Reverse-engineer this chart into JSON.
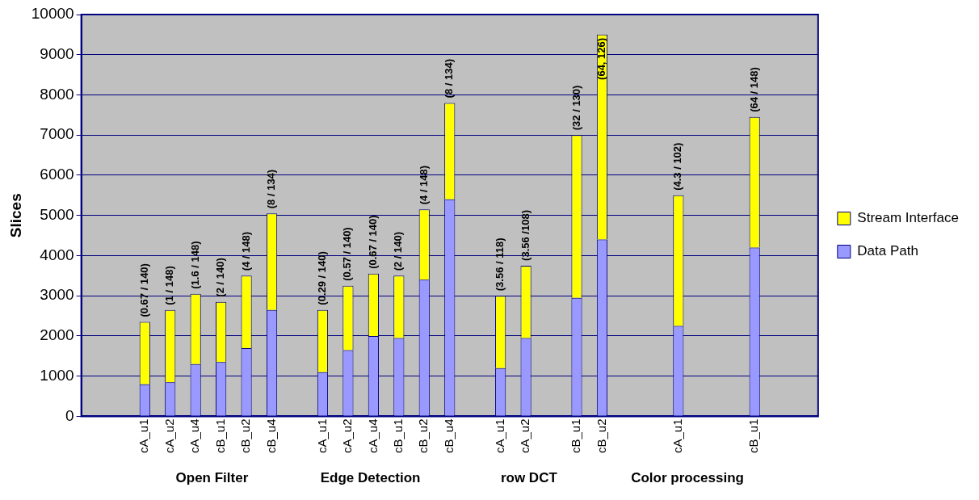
{
  "chart_data": {
    "type": "bar",
    "stacked": true,
    "ylabel": "Slices",
    "categories": [
      null,
      null,
      "cA_u1",
      "cA_u2",
      "cA_u4",
      "cB_u1",
      "cB_u2",
      "cB_u4",
      null,
      "cA_u1",
      "cA_u2",
      "cA_u4",
      "cB_u1",
      "cB_u2",
      "cB_u4",
      null,
      "cA_u1",
      "cA_u2",
      null,
      "cB_u1",
      "cB_u2",
      null,
      null,
      "cA_u1",
      null,
      null,
      "cB_u1",
      null,
      null
    ],
    "series": [
      {
        "name": "Data Path",
        "color": "#9999ff",
        "values": [
          null,
          null,
          800,
          850,
          1300,
          1350,
          1700,
          2650,
          null,
          1100,
          1650,
          2000,
          1950,
          3400,
          5400,
          null,
          1200,
          1950,
          null,
          2950,
          4400,
          null,
          null,
          2250,
          null,
          null,
          4200,
          null,
          null
        ]
      },
      {
        "name": "Stream Interface",
        "color": "#ffff00",
        "values": [
          null,
          null,
          1550,
          1800,
          1750,
          1500,
          1800,
          2400,
          null,
          1550,
          1600,
          1550,
          1550,
          1750,
          2400,
          null,
          1800,
          1800,
          null,
          4050,
          5100,
          null,
          null,
          3250,
          null,
          null,
          3250,
          null,
          null
        ],
        "value_labels": [
          null,
          null,
          "(0.67 / 140)",
          "(1 / 148)",
          "(1.6 / 148)",
          "(2 / 140)",
          "(4 / 148)",
          "(8 / 134)",
          null,
          "(0.29 / 140)",
          "(0.57 / 140)",
          "(0.67 / 140)",
          "(2 / 140)",
          "(4 / 148)",
          "(8 / 134)",
          null,
          "(3.56 / 118)",
          "(3.56 /108)",
          null,
          "(32 / 130)",
          "(64, 126)",
          null,
          null,
          "(4.3 / 102)",
          null,
          null,
          "(64 / 148)",
          null,
          null
        ]
      }
    ],
    "ylim": [
      0,
      10000
    ],
    "yticks": [
      0,
      1000,
      2000,
      3000,
      4000,
      5000,
      6000,
      7000,
      8000,
      9000,
      10000
    ],
    "grid": "y",
    "legend": "right",
    "annotations": [
      "Open Filter",
      "Edge Detection",
      "row DCT",
      "Color processing"
    ]
  }
}
